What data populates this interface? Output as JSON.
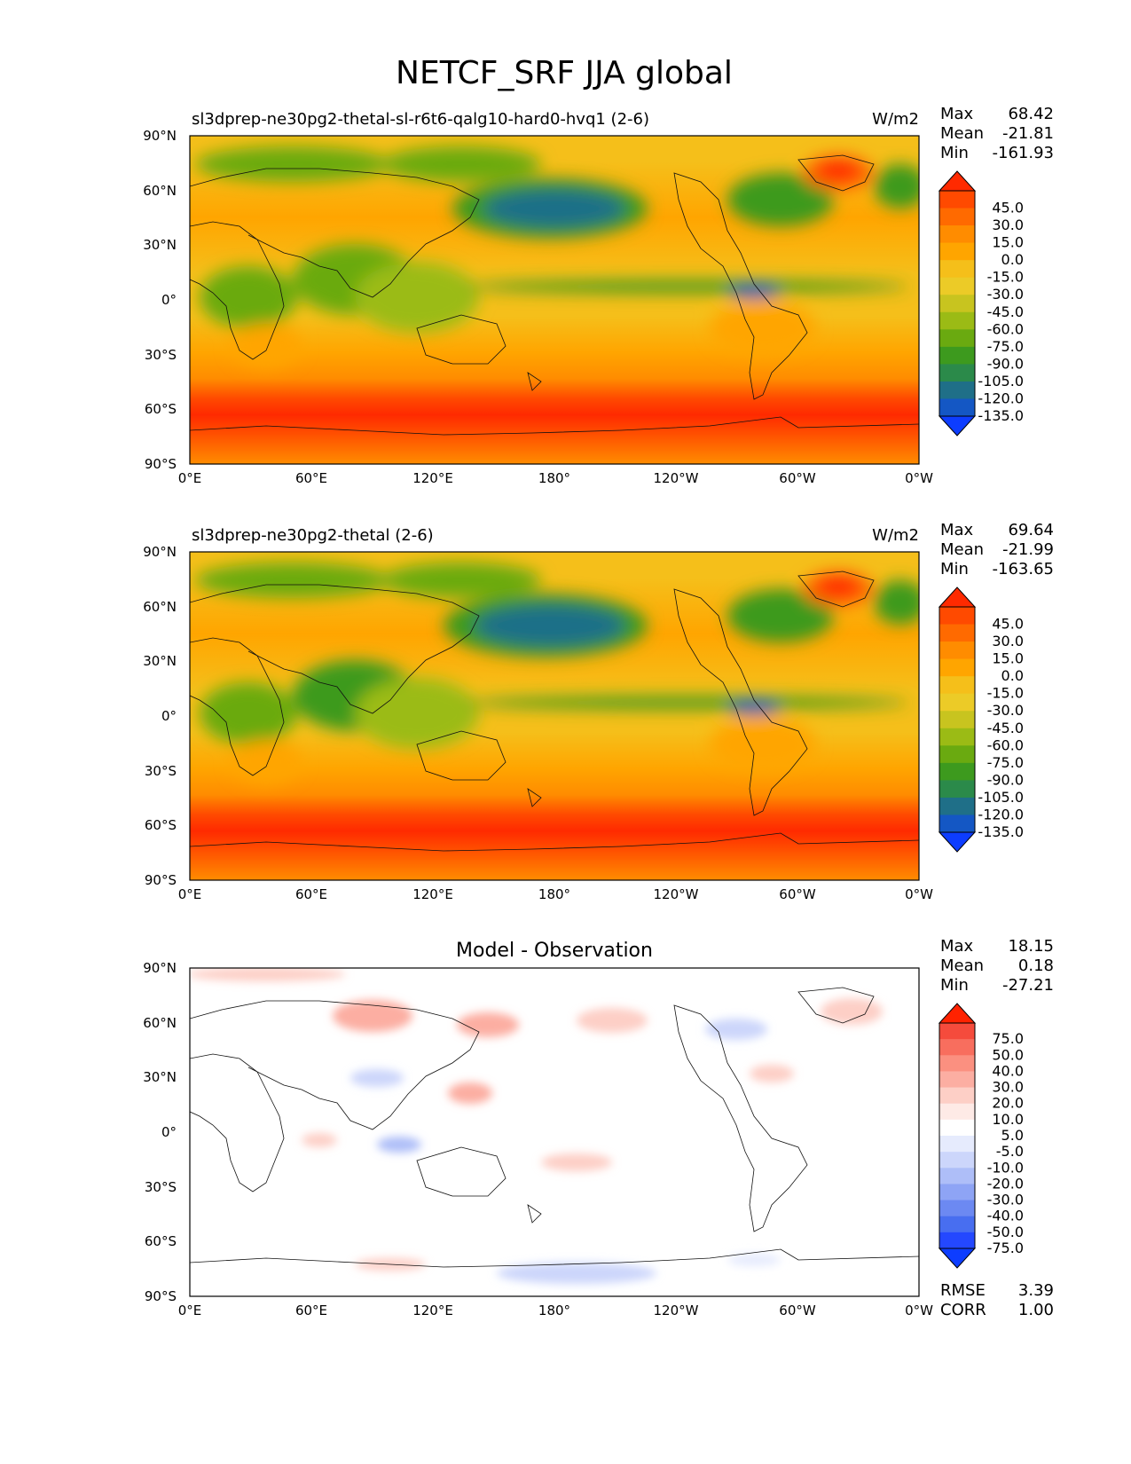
{
  "figure": {
    "title": "NETCF_SRF JJA global",
    "x_ticks": [
      "0°E",
      "60°E",
      "120°E",
      "180°",
      "120°W",
      "60°W",
      "0°W"
    ],
    "y_ticks": [
      "90°N",
      "60°N",
      "30°N",
      "0°",
      "30°S",
      "60°S",
      "90°S"
    ]
  },
  "panels": [
    {
      "id": "test",
      "title": "sl3dprep-ne30pg2-thetal-sl-r6t6-qalg10-hard0-hvq1 (2-6)",
      "units": "W/m2",
      "stats": [
        {
          "label": "Max",
          "value": "68.42"
        },
        {
          "label": "Mean",
          "value": "-21.81"
        },
        {
          "label": "Min",
          "value": "-161.93"
        }
      ],
      "colorbar_labels": [
        "45.0",
        "30.0",
        "15.0",
        "0.0",
        "-15.0",
        "-30.0",
        "-45.0",
        "-60.0",
        "-75.0",
        "-90.0",
        "-105.0",
        "-120.0",
        "-135.0"
      ],
      "colorbar_colors": [
        "#ff2a00",
        "#ff4a00",
        "#ff6a00",
        "#ff8c00",
        "#ffa500",
        "#f5bf1a",
        "#eccb27",
        "#c8c41f",
        "#9bbb15",
        "#6aaa10",
        "#3d9a1e",
        "#2b8a4a",
        "#1f6f88",
        "#1457c4",
        "#0d3dff"
      ]
    },
    {
      "id": "reference",
      "title": "sl3dprep-ne30pg2-thetal (2-6)",
      "units": "W/m2",
      "stats": [
        {
          "label": "Max",
          "value": "69.64"
        },
        {
          "label": "Mean",
          "value": "-21.99"
        },
        {
          "label": "Min",
          "value": "-163.65"
        }
      ],
      "colorbar_labels": [
        "45.0",
        "30.0",
        "15.0",
        "0.0",
        "-15.0",
        "-30.0",
        "-45.0",
        "-60.0",
        "-75.0",
        "-90.0",
        "-105.0",
        "-120.0",
        "-135.0"
      ],
      "colorbar_colors": [
        "#ff2a00",
        "#ff4a00",
        "#ff6a00",
        "#ff8c00",
        "#ffa500",
        "#f5bf1a",
        "#eccb27",
        "#c8c41f",
        "#9bbb15",
        "#6aaa10",
        "#3d9a1e",
        "#2b8a4a",
        "#1f6f88",
        "#1457c4",
        "#0d3dff"
      ]
    },
    {
      "id": "difference",
      "title": "Model - Observation",
      "units": "",
      "stats": [
        {
          "label": "Max",
          "value": "18.15"
        },
        {
          "label": "Mean",
          "value": "0.18"
        },
        {
          "label": "Min",
          "value": "-27.21"
        }
      ],
      "colorbar_labels": [
        "75.0",
        "50.0",
        "40.0",
        "30.0",
        "20.0",
        "10.0",
        "5.0",
        "-5.0",
        "-10.0",
        "-20.0",
        "-30.0",
        "-40.0",
        "-50.0",
        "-75.0"
      ],
      "colorbar_colors": [
        "#ff2200",
        "#f54b3c",
        "#f86e5e",
        "#fb9080",
        "#fcaea2",
        "#fdcfc6",
        "#feeae6",
        "#ffffff",
        "#e6ebfd",
        "#ccd6fb",
        "#aebef8",
        "#8ea4f5",
        "#6c89f2",
        "#486ef0",
        "#2448ff",
        "#0d3dff"
      ],
      "rmse": {
        "label": "RMSE",
        "value": "3.39"
      },
      "corr": {
        "label": "CORR",
        "value": "1.00"
      }
    }
  ]
}
